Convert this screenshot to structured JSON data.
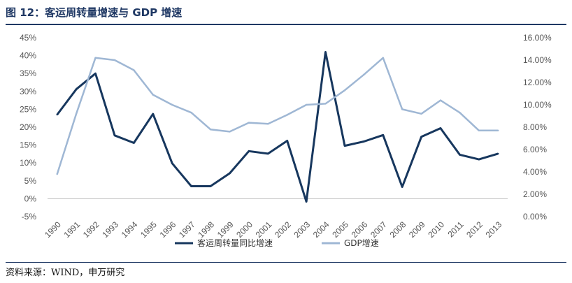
{
  "figure": {
    "title": "图 12：客运周转量增速与 GDP 增速",
    "source": "资料来源：WIND，申万研究"
  },
  "colors": {
    "accent": "#1f3864",
    "series1": "#17375e",
    "series2": "#9fb7d4"
  },
  "chart_data": {
    "type": "line",
    "title": "",
    "xlabel": "",
    "ylabel": "",
    "categories": [
      "1990",
      "1991",
      "1992",
      "1993",
      "1994",
      "1995",
      "1996",
      "1997",
      "1998",
      "1999",
      "2000",
      "2001",
      "2002",
      "2003",
      "2004",
      "2005",
      "2006",
      "2007",
      "2008",
      "2009",
      "2010",
      "2011",
      "2012",
      "2013"
    ],
    "y_left": {
      "ylim": [
        -5,
        45
      ],
      "ticks": [
        -5,
        0,
        5,
        10,
        15,
        20,
        25,
        30,
        35,
        40,
        45
      ],
      "tick_labels": [
        "-5%",
        "0%",
        "5%",
        "10%",
        "15%",
        "20%",
        "25%",
        "30%",
        "35%",
        "40%",
        "45%"
      ]
    },
    "y_right": {
      "ylim": [
        0,
        16
      ],
      "ticks": [
        0,
        2,
        4,
        6,
        8,
        10,
        12,
        14,
        16
      ],
      "tick_labels": [
        "0.00%",
        "2.00%",
        "4.00%",
        "6.00%",
        "8.00%",
        "10.00%",
        "12.00%",
        "14.00%",
        "16.00%"
      ]
    },
    "series": [
      {
        "name": "客运周转量同比增速",
        "axis": "left",
        "values": [
          23.5,
          30.6,
          35.0,
          17.7,
          15.6,
          23.7,
          9.9,
          3.5,
          3.5,
          7.1,
          13.3,
          12.6,
          16.2,
          -0.8,
          41.0,
          14.8,
          16.0,
          17.8,
          3.3,
          17.3,
          19.7,
          12.3,
          11.0,
          12.6
        ]
      },
      {
        "name": "GDP增速",
        "axis": "right",
        "values": [
          3.8,
          9.2,
          14.2,
          14.0,
          13.1,
          10.9,
          10.0,
          9.3,
          7.8,
          7.6,
          8.4,
          8.3,
          9.1,
          10.0,
          10.1,
          11.3,
          12.7,
          14.2,
          9.6,
          9.2,
          10.4,
          9.3,
          7.7,
          7.7
        ]
      }
    ],
    "legend_position": "bottom-center",
    "grid": false
  }
}
